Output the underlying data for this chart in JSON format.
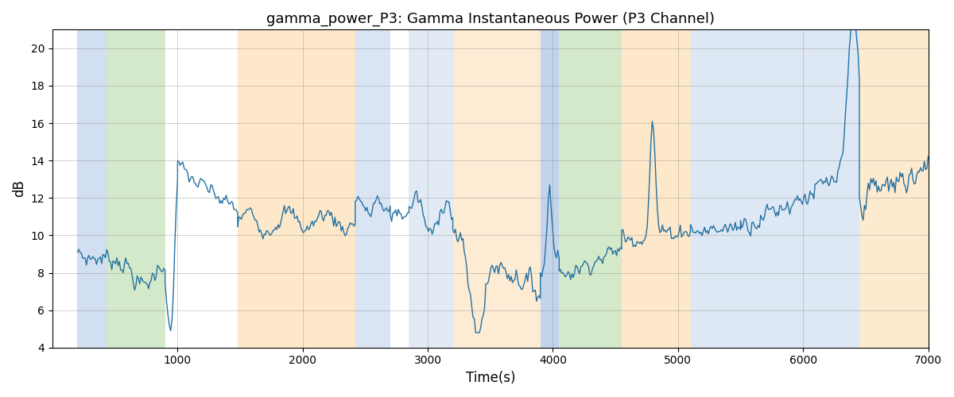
{
  "title": "gamma_power_P3: Gamma Instantaneous Power (P3 Channel)",
  "xlabel": "Time(s)",
  "ylabel": "dB",
  "xlim": [
    0,
    7000
  ],
  "ylim": [
    4,
    21
  ],
  "yticks": [
    4,
    6,
    8,
    10,
    12,
    14,
    16,
    18,
    20
  ],
  "xticks": [
    1000,
    2000,
    3000,
    4000,
    5000,
    6000,
    7000
  ],
  "line_color": "#2471a3",
  "line_width": 1.0,
  "background_color": "#ffffff",
  "bands": [
    {
      "start": 200,
      "end": 430,
      "color": "#adc6e5",
      "alpha": 0.55
    },
    {
      "start": 430,
      "end": 900,
      "color": "#b2d8a0",
      "alpha": 0.55
    },
    {
      "start": 1480,
      "end": 2420,
      "color": "#fdd9a8",
      "alpha": 0.6
    },
    {
      "start": 2420,
      "end": 2700,
      "color": "#adc6e5",
      "alpha": 0.45
    },
    {
      "start": 2850,
      "end": 3200,
      "color": "#adc6e5",
      "alpha": 0.35
    },
    {
      "start": 3200,
      "end": 3900,
      "color": "#fdd9a8",
      "alpha": 0.5
    },
    {
      "start": 3900,
      "end": 4050,
      "color": "#adc6e5",
      "alpha": 0.75
    },
    {
      "start": 4050,
      "end": 4550,
      "color": "#b2d8a0",
      "alpha": 0.55
    },
    {
      "start": 4550,
      "end": 5100,
      "color": "#fdd9a8",
      "alpha": 0.6
    },
    {
      "start": 5100,
      "end": 6450,
      "color": "#adc6e5",
      "alpha": 0.4
    },
    {
      "start": 6450,
      "end": 7100,
      "color": "#fdd9a8",
      "alpha": 0.55
    }
  ]
}
